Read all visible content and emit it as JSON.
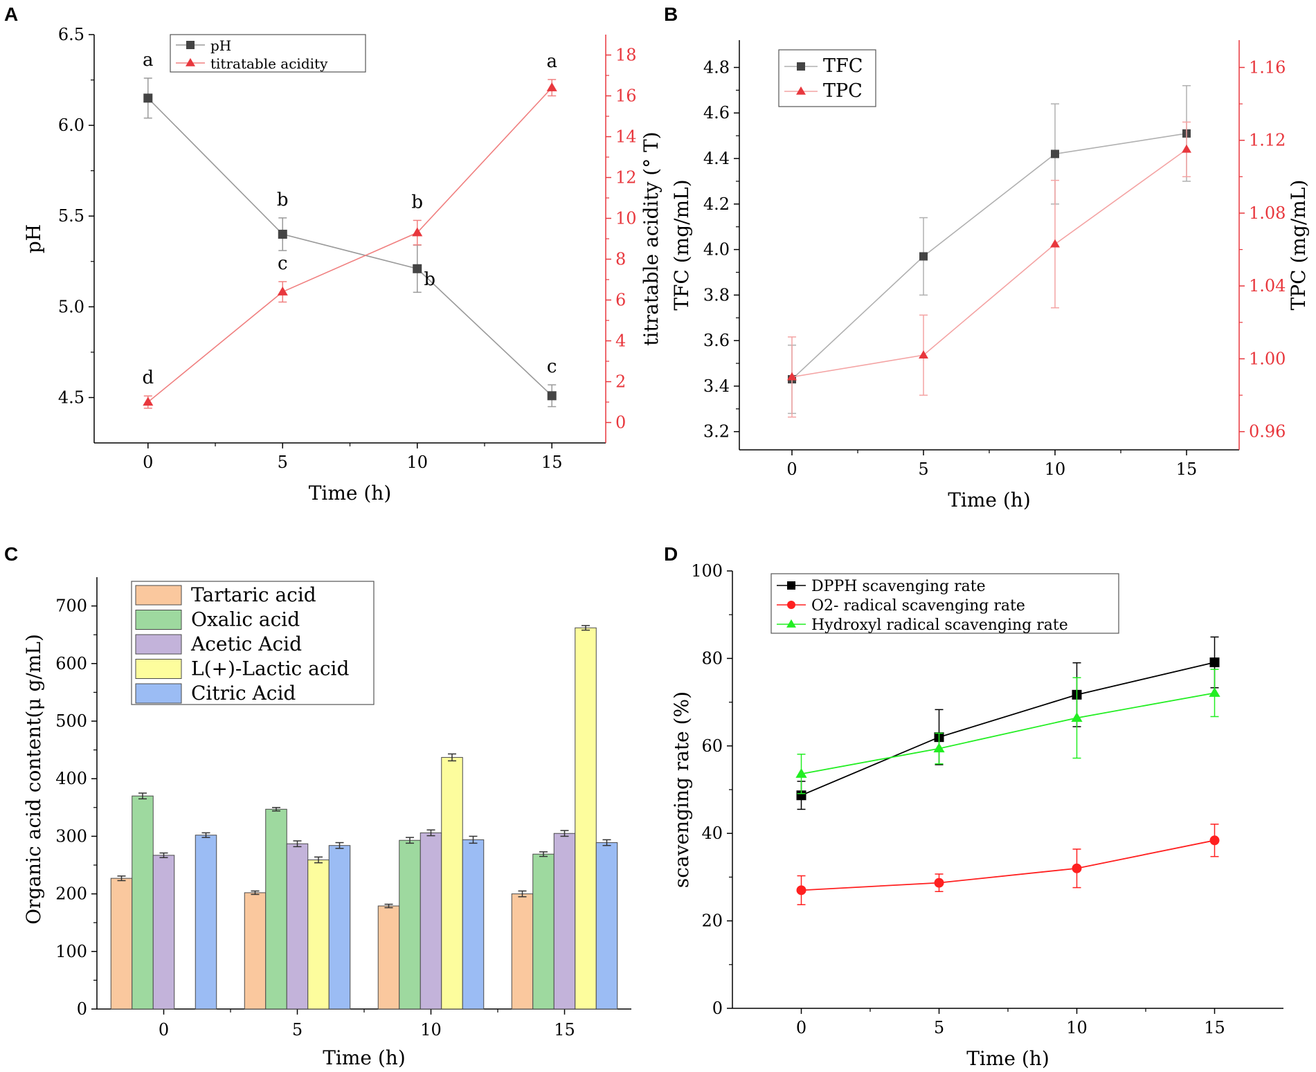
{
  "chart_data": [
    {
      "panel": "A",
      "type": "line",
      "xlabel": "Time (h)",
      "ylabel": "pH",
      "y2label": "titratable acidity (° T)",
      "x": [
        0,
        5,
        10,
        15
      ],
      "xticks": [
        0,
        5,
        10,
        15
      ],
      "xlim": [
        -2,
        17
      ],
      "ylim": [
        4.25,
        6.5
      ],
      "yticks": [
        4.5,
        5.0,
        5.5,
        6.0,
        6.5
      ],
      "ytick_labels": [
        "4.5",
        "5.0",
        "5.5",
        "6.0",
        "6.5"
      ],
      "y2lim": [
        -1,
        19
      ],
      "y2ticks": [
        0,
        2,
        4,
        6,
        8,
        10,
        12,
        14,
        16,
        18
      ],
      "legend_position": "top-left",
      "series": [
        {
          "name": "pH",
          "axis": "left",
          "marker": "square",
          "color": "#444444",
          "line_color": "#9a9a9a",
          "values": [
            6.15,
            5.4,
            5.21,
            4.51
          ],
          "errors": [
            0.11,
            0.09,
            0.13,
            0.06
          ],
          "labels": [
            "a",
            "b",
            "b",
            "c"
          ]
        },
        {
          "name": "titratable acidity",
          "axis": "right",
          "marker": "triangle",
          "color": "#e8373d",
          "line_color": "#f08080",
          "values": [
            1.0,
            6.4,
            9.3,
            16.4
          ],
          "errors": [
            0.3,
            0.5,
            0.6,
            0.4
          ],
          "labels": [
            "d",
            "c",
            "b",
            "a"
          ]
        }
      ]
    },
    {
      "panel": "B",
      "type": "line",
      "xlabel": "Time (h)",
      "ylabel": "TFC (mg/mL)",
      "y2label": "TPC (mg/mL)",
      "x": [
        0,
        5,
        10,
        15
      ],
      "xticks": [
        0,
        5,
        10,
        15
      ],
      "xlim": [
        -2,
        17
      ],
      "ylim": [
        3.12,
        4.92
      ],
      "yticks": [
        3.2,
        3.4,
        3.6,
        3.8,
        4.0,
        4.2,
        4.4,
        4.6,
        4.8
      ],
      "ytick_labels": [
        "3.2",
        "3.4",
        "3.6",
        "3.8",
        "4.0",
        "4.2",
        "4.4",
        "4.6",
        "4.8"
      ],
      "y2lim": [
        0.95,
        1.175
      ],
      "y2ticks": [
        0.96,
        1.0,
        1.04,
        1.08,
        1.12,
        1.16
      ],
      "y2tick_labels": [
        "0.96",
        "1.00",
        "1.04",
        "1.08",
        "1.12",
        "1.16"
      ],
      "legend_position": "top-left",
      "series": [
        {
          "name": "TFC",
          "axis": "left",
          "marker": "square",
          "color": "#444444",
          "line_color": "#b0b0b0",
          "values": [
            3.43,
            3.97,
            4.42,
            4.51
          ],
          "errors": [
            0.15,
            0.17,
            0.22,
            0.21
          ]
        },
        {
          "name": "TPC",
          "axis": "right",
          "marker": "triangle",
          "color": "#e8373d",
          "line_color": "#f4a3a3",
          "values": [
            0.99,
            1.002,
            1.063,
            1.115
          ],
          "errors": [
            0.022,
            0.022,
            0.035,
            0.015
          ]
        }
      ]
    },
    {
      "panel": "C",
      "type": "bar",
      "xlabel": "Time (h)",
      "ylabel": "Organic acid content(μ g/mL)",
      "categories": [
        "0",
        "5",
        "10",
        "15"
      ],
      "ylim": [
        0,
        750
      ],
      "yticks": [
        0,
        100,
        200,
        300,
        400,
        500,
        600,
        700
      ],
      "legend_position": "top-left",
      "series": [
        {
          "name": "Tartaric acid",
          "color": "#fac89e",
          "values": [
            227,
            202,
            179,
            200
          ],
          "errors": [
            4,
            3,
            3,
            5
          ]
        },
        {
          "name": "Oxalic acid",
          "color": "#9ed99f",
          "values": [
            370,
            347,
            293,
            269
          ],
          "errors": [
            5,
            3,
            5,
            4
          ]
        },
        {
          "name": "Acetic Acid",
          "color": "#c3b3da",
          "values": [
            267,
            287,
            306,
            305
          ],
          "errors": [
            4,
            5,
            5,
            5
          ]
        },
        {
          "name": "L(+)-Lactic acid",
          "color": "#fdfd9d",
          "values": [
            0,
            259,
            437,
            662
          ],
          "errors": [
            0,
            5,
            6,
            4
          ]
        },
        {
          "name": "Citric Acid",
          "color": "#9bbcf4",
          "values": [
            302,
            284,
            294,
            289
          ],
          "errors": [
            4,
            5,
            6,
            5
          ]
        }
      ]
    },
    {
      "panel": "D",
      "type": "line",
      "xlabel": "Time (h)",
      "ylabel": "scavenging rate (%)",
      "x": [
        0,
        5,
        10,
        15
      ],
      "xticks": [
        0,
        5,
        10,
        15
      ],
      "xlim": [
        -2.5,
        17.5
      ],
      "ylim": [
        0,
        100
      ],
      "yticks": [
        0,
        20,
        40,
        60,
        80,
        100
      ],
      "legend_position": "top-left",
      "series": [
        {
          "name": "DPPH scavenging rate",
          "marker": "square",
          "color": "#000000",
          "values": [
            48.7,
            62.0,
            71.7,
            79.1
          ],
          "errors": [
            3.2,
            6.3,
            7.3,
            5.8
          ]
        },
        {
          "name": "O2- radical scavenging rate",
          "marker": "circle",
          "color": "#ff2020",
          "values": [
            27.0,
            28.7,
            32.0,
            38.4
          ],
          "errors": [
            3.3,
            2.0,
            4.4,
            3.7
          ]
        },
        {
          "name": "Hydroxyl radical scavenging rate",
          "marker": "triangle",
          "color": "#22ee22",
          "values": [
            53.6,
            59.4,
            66.4,
            72.1
          ],
          "errors": [
            4.5,
            3.5,
            9.2,
            5.4
          ]
        }
      ]
    }
  ]
}
